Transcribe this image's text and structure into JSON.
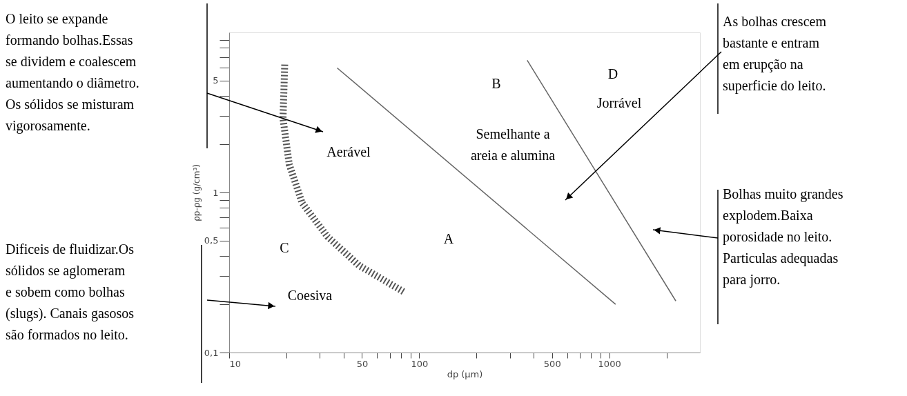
{
  "chart_data": {
    "type": "line",
    "xlabel": "dp (μm)",
    "ylabel": "ρp-ρg (g/cm³)",
    "xlim": [
      10,
      3000
    ],
    "ylim": [
      0.1,
      10
    ],
    "log": "xy",
    "xticks": [
      10,
      {
        "value": 20,
        "label": null
      },
      {
        "value": 30,
        "label": null
      },
      {
        "value": 40,
        "label": null
      },
      50,
      {
        "value": 60,
        "label": null
      },
      {
        "value": 70,
        "label": null
      },
      {
        "value": 80,
        "label": null
      },
      {
        "value": 90,
        "label": null
      },
      100,
      {
        "value": 200,
        "label": null
      },
      {
        "value": 300,
        "label": null
      },
      {
        "value": 400,
        "label": null
      },
      500,
      {
        "value": 600,
        "label": null
      },
      {
        "value": 700,
        "label": null
      },
      {
        "value": 800,
        "label": null
      },
      {
        "value": 900,
        "label": null
      },
      1000,
      {
        "value": 2000,
        "label": null
      }
    ],
    "yticks": [
      {
        "value": 0.1,
        "label": "0,1"
      },
      {
        "value": 0.2,
        "label": null
      },
      {
        "value": 0.3,
        "label": null
      },
      {
        "value": 0.4,
        "label": null
      },
      {
        "value": 0.5,
        "label": "0,5"
      },
      {
        "value": 0.6,
        "label": null
      },
      {
        "value": 0.7,
        "label": null
      },
      {
        "value": 0.8,
        "label": null
      },
      {
        "value": 0.9,
        "label": null
      },
      1,
      {
        "value": 2,
        "label": null
      },
      {
        "value": 3,
        "label": null
      },
      {
        "value": 4,
        "label": null
      },
      5,
      {
        "value": 6,
        "label": null
      },
      {
        "value": 7,
        "label": null
      },
      {
        "value": 8,
        "label": null
      },
      {
        "value": 9,
        "label": null
      }
    ],
    "grid": false,
    "series": [
      {
        "color": "#555555",
        "line_style": "dashed",
        "x": [
          19.6,
          19.2,
          20.7,
          24.2,
          32.9,
          48.2,
          82.6
        ],
        "values": [
          6.3,
          2.9,
          1.5,
          0.86,
          0.53,
          0.35,
          0.24
        ]
      },
      {
        "color": "#666666",
        "line_style": "solid",
        "x": [
          37,
          1080
        ],
        "values": [
          6.0,
          0.2
        ]
      },
      {
        "color": "#666666",
        "line_style": "solid",
        "x": [
          370,
          2240
        ],
        "values": [
          6.7,
          0.21
        ]
      }
    ],
    "annotations": [
      "O leito se expande\nformando bolhas.Essas\nse dividem e coalescem\naumentando o diâmetro.\nOs sólidos se misturam\nvigorosamente.",
      "As bolhas crescem\nbastante e entram\nem erupção na\nsuperficie do leito.",
      "Bolhas muito grandes\nexplodem.Baixa\nporosidade no leito.\nParticulas adequadas\npara jorro.",
      "Dificeis de fluidizar.Os\nsólidos se aglomeram\ne sobem como bolhas\n(slugs). Canais gasosos\nsão formados no leito.",
      "B",
      "D",
      "Jorrável",
      "Semelhante a\nareia e alumina",
      "Aerável",
      "A",
      "C",
      "Coesiva"
    ]
  }
}
